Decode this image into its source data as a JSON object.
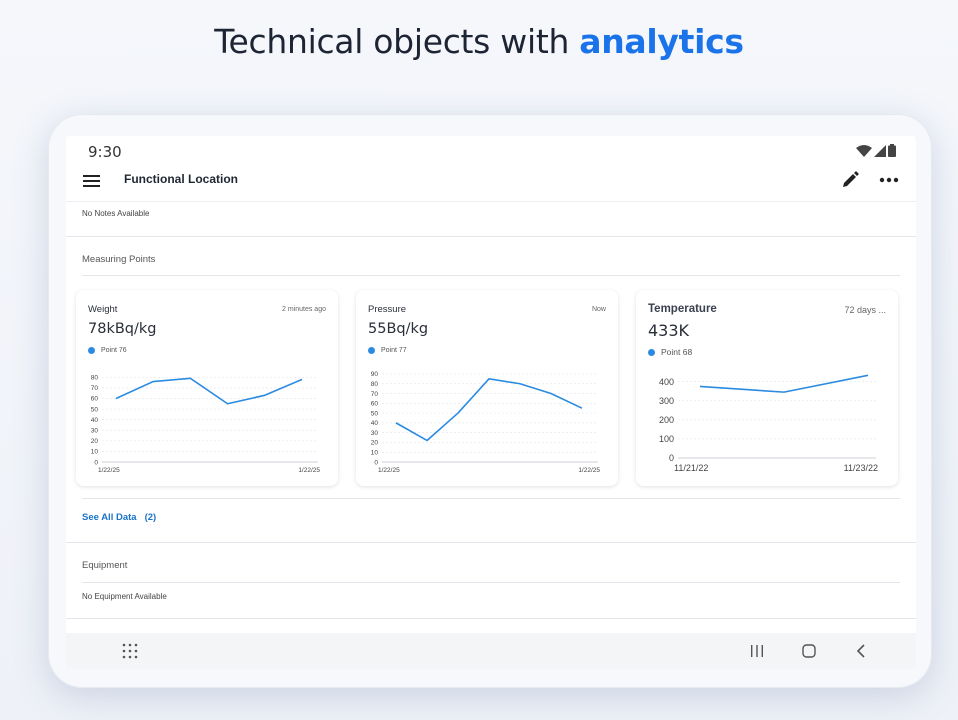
{
  "headline": {
    "text": "Technical objects with ",
    "accent": "analytics",
    "accent_color": "#1a73e8"
  },
  "status_bar": {
    "time": "9:30",
    "icons": [
      "wifi-icon",
      "signal-icon",
      "battery-icon"
    ]
  },
  "app_bar": {
    "title": "Functional Location",
    "icons": [
      "menu-icon",
      "edit-icon",
      "more-icon"
    ]
  },
  "notes": {
    "text": "No Notes Available"
  },
  "measuring_points": {
    "label": "Measuring Points",
    "cards": [
      {
        "title": "Weight",
        "time": "2 minutes ago",
        "value": "78kBq/kg",
        "legend": "Point 76"
      },
      {
        "title": "Pressure",
        "time": "Now",
        "value": "55Bq/kg",
        "legend": "Point 77"
      },
      {
        "title": "Temperature",
        "time": "72 days ...",
        "value": "433K",
        "legend": "Point 68"
      }
    ],
    "see_all": {
      "label": "See All Data",
      "count": "(2)"
    }
  },
  "equipment": {
    "label": "Equipment",
    "text": "No Equipment Available"
  },
  "nav_bar": {
    "icons": [
      "apps-grid-icon",
      "recent-apps-icon",
      "home-icon",
      "back-icon"
    ]
  },
  "chart_data": [
    {
      "type": "line",
      "title": "Weight",
      "x_tick_labels": [
        "1/22/25",
        "1/22/25"
      ],
      "y_ticks": [
        0,
        10,
        20,
        30,
        40,
        50,
        60,
        70,
        80
      ],
      "ylim": [
        0,
        85
      ],
      "values": [
        60,
        76,
        79,
        55,
        63,
        78
      ],
      "series_color": "#2b8be0",
      "grid": true
    },
    {
      "type": "line",
      "title": "Pressure",
      "x_tick_labels": [
        "1/22/25",
        "1/22/25"
      ],
      "y_ticks": [
        0,
        10,
        20,
        30,
        40,
        50,
        60,
        70,
        80,
        90
      ],
      "ylim": [
        0,
        92
      ],
      "values": [
        40,
        22,
        50,
        85,
        80,
        70,
        55
      ],
      "series_color": "#2b8be0",
      "grid": true
    },
    {
      "type": "line",
      "title": "Temperature",
      "x_tick_labels": [
        "11/21/22",
        "11/23/22"
      ],
      "y_ticks": [
        0,
        100,
        200,
        300,
        400
      ],
      "ylim": [
        0,
        440
      ],
      "values": [
        375,
        345,
        433
      ],
      "x_positions": [
        0,
        0.5,
        1
      ],
      "series_color": "#2b8be0",
      "grid": true
    }
  ]
}
